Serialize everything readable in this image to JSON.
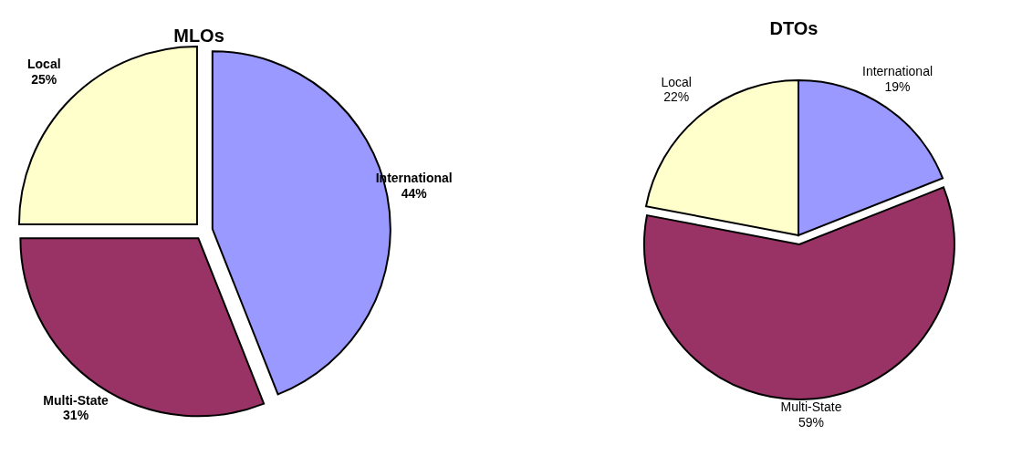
{
  "chart_data": [
    {
      "type": "pie",
      "title": "MLOs",
      "categories": [
        "International",
        "Multi-State",
        "Local"
      ],
      "values": [
        44,
        31,
        25
      ],
      "colors": [
        "#9999ff",
        "#993366",
        "#ffffcc"
      ],
      "value_labels": [
        "44%",
        "31%",
        "25%"
      ]
    },
    {
      "type": "pie",
      "title": "DTOs",
      "categories": [
        "International",
        "Multi-State",
        "Local"
      ],
      "values": [
        19,
        59,
        22
      ],
      "colors": [
        "#9999ff",
        "#993366",
        "#ffffcc"
      ],
      "value_labels": [
        "19%",
        "59%",
        "22%"
      ]
    }
  ]
}
